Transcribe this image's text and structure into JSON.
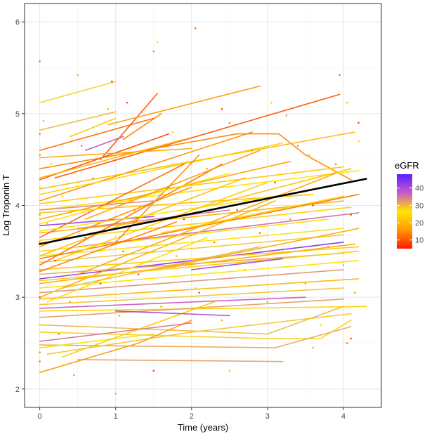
{
  "chart_data": {
    "type": "line",
    "title": "",
    "xlabel": "Time (years)",
    "ylabel": "Log Troponin T",
    "xlim": [
      -0.2,
      4.5
    ],
    "ylim": [
      1.8,
      6.2
    ],
    "x_ticks": [
      0,
      1,
      2,
      3,
      4
    ],
    "y_ticks": [
      2,
      3,
      4,
      5,
      6
    ],
    "x_tick_labels": [
      "0",
      "1",
      "2",
      "3",
      "4"
    ],
    "y_tick_labels": [
      "2",
      "3",
      "4",
      "5",
      "6"
    ],
    "grid": true,
    "legend": {
      "title": "eGFR",
      "position": "right",
      "type": "colorbar",
      "range": [
        5,
        48
      ],
      "ticks": [
        10,
        20,
        30,
        40
      ],
      "tick_labels": [
        "10",
        "20",
        "30",
        "40"
      ],
      "colors": [
        "#ff1a00",
        "#ff9900",
        "#ffe600",
        "#c85ac8",
        "#5a1fff"
      ]
    },
    "mean_trend": {
      "color": "#000000",
      "points": [
        [
          0,
          3.58
        ],
        [
          4.3,
          4.29
        ]
      ]
    },
    "subjects": [
      {
        "egfr": 28,
        "points": [
          [
            0,
            5.12
          ],
          [
            1.0,
            5.35
          ]
        ]
      },
      {
        "egfr": 30,
        "points": [
          [
            0,
            4.82
          ],
          [
            1.0,
            5.02
          ]
        ]
      },
      {
        "egfr": 22,
        "points": [
          [
            0.4,
            4.75
          ],
          [
            1.0,
            4.95
          ]
        ]
      },
      {
        "egfr": 38,
        "points": [
          [
            0.6,
            4.6
          ],
          [
            1.1,
            4.75
          ]
        ]
      },
      {
        "egfr": 10,
        "points": [
          [
            0.8,
            4.5
          ],
          [
            1.55,
            5.22
          ]
        ]
      },
      {
        "egfr": 16,
        "points": [
          [
            0.9,
            4.88
          ],
          [
            2.9,
            5.3
          ]
        ]
      },
      {
        "egfr": 14,
        "points": [
          [
            1.1,
            4.72
          ],
          [
            1.6,
            5.0
          ]
        ]
      },
      {
        "egfr": 12,
        "points": [
          [
            0,
            4.6
          ],
          [
            1.5,
            4.95
          ]
        ]
      },
      {
        "egfr": 9,
        "points": [
          [
            0,
            4.28
          ],
          [
            1.7,
            4.78
          ]
        ]
      },
      {
        "egfr": 15,
        "points": [
          [
            0,
            4.05
          ],
          [
            2.8,
            4.8
          ]
        ]
      },
      {
        "egfr": 10,
        "points": [
          [
            0.2,
            4.3
          ],
          [
            3.95,
            5.21
          ]
        ]
      },
      {
        "egfr": 14,
        "points": [
          [
            0,
            4.4
          ],
          [
            2.6,
            4.78
          ],
          [
            3.15,
            4.78
          ],
          [
            3.5,
            4.55
          ],
          [
            4.1,
            4.28
          ]
        ]
      },
      {
        "egfr": 20,
        "points": [
          [
            0,
            4.18
          ],
          [
            4.15,
            4.8
          ]
        ]
      },
      {
        "egfr": 18,
        "points": [
          [
            0,
            4.52
          ],
          [
            2.0,
            4.62
          ]
        ]
      },
      {
        "egfr": 24,
        "points": [
          [
            0,
            4.12
          ],
          [
            3.2,
            4.68
          ]
        ]
      },
      {
        "egfr": 26,
        "points": [
          [
            0,
            3.95
          ],
          [
            4.2,
            4.38
          ]
        ]
      },
      {
        "egfr": 22,
        "points": [
          [
            0,
            4.02
          ],
          [
            4.0,
            4.42
          ]
        ]
      },
      {
        "egfr": 17,
        "points": [
          [
            0,
            3.85
          ],
          [
            3.3,
            4.48
          ]
        ]
      },
      {
        "egfr": 21,
        "points": [
          [
            0,
            3.92
          ],
          [
            3.6,
            4.12
          ]
        ]
      },
      {
        "egfr": 35,
        "points": [
          [
            0.5,
            3.75
          ],
          [
            2.5,
            3.95
          ]
        ]
      },
      {
        "egfr": 42,
        "points": [
          [
            0,
            3.78
          ],
          [
            1.5,
            3.88
          ]
        ]
      },
      {
        "egfr": 36,
        "points": [
          [
            0.5,
            3.55
          ],
          [
            4.2,
            3.92
          ]
        ]
      },
      {
        "egfr": 19,
        "points": [
          [
            0,
            3.7
          ],
          [
            4.0,
            4.05
          ]
        ]
      },
      {
        "egfr": 23,
        "points": [
          [
            0,
            3.62
          ],
          [
            4.1,
            3.98
          ]
        ]
      },
      {
        "egfr": 25,
        "points": [
          [
            0,
            3.5
          ],
          [
            3.8,
            3.85
          ]
        ]
      },
      {
        "egfr": 27,
        "points": [
          [
            0,
            3.45
          ],
          [
            4.0,
            3.75
          ]
        ]
      },
      {
        "egfr": 13,
        "points": [
          [
            0,
            3.42
          ],
          [
            4.2,
            4.12
          ]
        ]
      },
      {
        "egfr": 29,
        "points": [
          [
            0,
            3.38
          ],
          [
            4.0,
            3.68
          ]
        ]
      },
      {
        "egfr": 44,
        "points": [
          [
            0,
            3.2
          ],
          [
            4.0,
            3.6
          ]
        ]
      },
      {
        "egfr": 22,
        "points": [
          [
            0,
            3.3
          ],
          [
            4.2,
            3.55
          ]
        ]
      },
      {
        "egfr": 31,
        "points": [
          [
            0,
            3.25
          ],
          [
            4.0,
            3.48
          ]
        ]
      },
      {
        "egfr": 18,
        "points": [
          [
            0,
            3.15
          ],
          [
            4.15,
            3.58
          ]
        ]
      },
      {
        "egfr": 26,
        "points": [
          [
            0,
            3.1
          ],
          [
            4.2,
            3.4
          ]
        ]
      },
      {
        "egfr": 33,
        "points": [
          [
            0,
            3.05
          ],
          [
            4.0,
            3.3
          ]
        ]
      },
      {
        "egfr": 20,
        "points": [
          [
            0,
            2.98
          ],
          [
            4.2,
            3.2
          ]
        ]
      },
      {
        "egfr": 29,
        "points": [
          [
            0,
            2.92
          ],
          [
            4.0,
            3.1
          ]
        ]
      },
      {
        "egfr": 37,
        "points": [
          [
            0,
            2.88
          ],
          [
            3.5,
            3.0
          ]
        ]
      },
      {
        "egfr": 24,
        "points": [
          [
            0,
            2.85
          ],
          [
            4.3,
            2.9
          ]
        ]
      },
      {
        "egfr": 32,
        "points": [
          [
            0,
            2.78
          ],
          [
            4.0,
            2.98
          ]
        ]
      },
      {
        "egfr": 30,
        "points": [
          [
            0,
            2.7
          ],
          [
            3.0,
            2.6
          ],
          [
            4.0,
            2.9
          ]
        ]
      },
      {
        "egfr": 28,
        "points": [
          [
            0,
            2.62
          ],
          [
            3.0,
            2.55
          ],
          [
            3.7,
            2.55
          ],
          [
            4.1,
            2.75
          ]
        ]
      },
      {
        "egfr": 31,
        "points": [
          [
            0,
            2.48
          ],
          [
            3.1,
            2.45
          ],
          [
            4.1,
            2.68
          ]
        ]
      },
      {
        "egfr": 29,
        "points": [
          [
            0.1,
            2.38
          ],
          [
            2.0,
            2.62
          ],
          [
            4.1,
            2.82
          ]
        ]
      },
      {
        "egfr": 32,
        "points": [
          [
            0.5,
            2.32
          ],
          [
            3.2,
            2.3
          ]
        ]
      },
      {
        "egfr": 27,
        "points": [
          [
            0,
            2.45
          ],
          [
            1.5,
            2.6
          ]
        ]
      },
      {
        "egfr": 22,
        "points": [
          [
            0.3,
            2.35
          ],
          [
            2.3,
            2.95
          ]
        ]
      },
      {
        "egfr": 16,
        "points": [
          [
            0,
            2.18
          ],
          [
            1.3,
            2.5
          ],
          [
            2.0,
            2.75
          ]
        ]
      },
      {
        "egfr": 35,
        "points": [
          [
            0,
            2.52
          ],
          [
            2.0,
            2.72
          ]
        ]
      },
      {
        "egfr": 40,
        "points": [
          [
            1.0,
            2.85
          ],
          [
            2.5,
            2.8
          ]
        ]
      },
      {
        "egfr": 21,
        "points": [
          [
            0,
            3.45
          ],
          [
            2.7,
            4.3
          ]
        ]
      },
      {
        "egfr": 11,
        "points": [
          [
            0,
            3.65
          ],
          [
            1.9,
            4.45
          ]
        ]
      },
      {
        "egfr": 12,
        "points": [
          [
            0,
            3.35
          ],
          [
            2.4,
            4.45
          ]
        ]
      },
      {
        "egfr": 15,
        "points": [
          [
            0,
            3.55
          ],
          [
            2.0,
            4.2
          ]
        ]
      },
      {
        "egfr": 23,
        "points": [
          [
            0.2,
            3.4
          ],
          [
            3.0,
            4.25
          ]
        ]
      },
      {
        "egfr": 19,
        "points": [
          [
            0,
            3.0
          ],
          [
            3.1,
            4.05
          ]
        ]
      },
      {
        "egfr": 17,
        "points": [
          [
            0.5,
            3.25
          ],
          [
            3.9,
            4.35
          ]
        ]
      },
      {
        "egfr": 25,
        "points": [
          [
            0.1,
            2.95
          ],
          [
            2.2,
            3.65
          ]
        ]
      },
      {
        "egfr": 14,
        "points": [
          [
            1.0,
            3.6
          ],
          [
            2.1,
            4.55
          ]
        ]
      },
      {
        "egfr": 20,
        "points": [
          [
            0,
            4.3
          ],
          [
            1.9,
            4.72
          ]
        ]
      },
      {
        "egfr": 26,
        "points": [
          [
            0,
            3.8
          ],
          [
            2.5,
            4.35
          ]
        ]
      },
      {
        "egfr": 18,
        "points": [
          [
            1.5,
            3.3
          ],
          [
            4.2,
            3.75
          ]
        ]
      },
      {
        "egfr": 30,
        "points": [
          [
            0.3,
            3.1
          ],
          [
            2.9,
            3.55
          ]
        ]
      },
      {
        "egfr": 24,
        "points": [
          [
            1.6,
            3.7
          ],
          [
            4.0,
            4.1
          ]
        ]
      },
      {
        "egfr": 13,
        "points": [
          [
            0,
            3.28
          ],
          [
            1.8,
            3.82
          ]
        ]
      },
      {
        "egfr": 34,
        "points": [
          [
            0,
            3.95
          ],
          [
            1.5,
            4.05
          ]
        ]
      },
      {
        "egfr": 21,
        "points": [
          [
            2.0,
            3.95
          ],
          [
            4.1,
            4.4
          ]
        ]
      },
      {
        "egfr": 27,
        "points": [
          [
            0,
            3.72
          ],
          [
            3.5,
            4.15
          ]
        ]
      },
      {
        "egfr": 16,
        "points": [
          [
            0.6,
            3.85
          ],
          [
            2.9,
            4.6
          ]
        ]
      },
      {
        "egfr": 23,
        "points": [
          [
            0,
            3.18
          ],
          [
            4.2,
            3.5
          ]
        ]
      },
      {
        "egfr": 41,
        "points": [
          [
            2.0,
            3.3
          ],
          [
            3.2,
            3.42
          ]
        ]
      }
    ],
    "points": [
      [
        0,
        5.57
      ],
      [
        0.5,
        5.42
      ],
      [
        0.95,
        5.35
      ],
      [
        1.55,
        5.78
      ],
      [
        1.5,
        5.68
      ],
      [
        2.05,
        5.93
      ],
      [
        0.9,
        5.05
      ],
      [
        1.15,
        5.12
      ],
      [
        1.2,
        4.62
      ],
      [
        0,
        4.55
      ],
      [
        0,
        4.78
      ],
      [
        0.05,
        4.92
      ],
      [
        2.4,
        5.05
      ],
      [
        3.05,
        5.12
      ],
      [
        3.25,
        4.98
      ],
      [
        3.95,
        5.42
      ],
      [
        4.05,
        5.12
      ],
      [
        4.2,
        4.9
      ],
      [
        0,
        4.2
      ],
      [
        0,
        3.9
      ],
      [
        0,
        3.6
      ],
      [
        0,
        3.3
      ],
      [
        0,
        3.0
      ],
      [
        0,
        2.7
      ],
      [
        0,
        2.4
      ],
      [
        0,
        2.3
      ],
      [
        0.1,
        3.8
      ],
      [
        0.2,
        3.4
      ],
      [
        0.3,
        4.1
      ],
      [
        0.4,
        2.95
      ],
      [
        0.6,
        3.65
      ],
      [
        0.7,
        4.3
      ],
      [
        0.8,
        3.15
      ],
      [
        0.9,
        3.95
      ],
      [
        1.05,
        2.8
      ],
      [
        1.1,
        3.5
      ],
      [
        1.2,
        4.05
      ],
      [
        1.3,
        3.25
      ],
      [
        1.4,
        3.75
      ],
      [
        1.6,
        2.9
      ],
      [
        1.7,
        4.2
      ],
      [
        1.8,
        3.45
      ],
      [
        1.9,
        3.85
      ],
      [
        2.05,
        3.1
      ],
      [
        2.2,
        4.4
      ],
      [
        2.3,
        3.6
      ],
      [
        2.4,
        2.75
      ],
      [
        2.6,
        3.95
      ],
      [
        2.7,
        3.3
      ],
      [
        2.8,
        4.6
      ],
      [
        2.9,
        3.7
      ],
      [
        3.0,
        2.95
      ],
      [
        3.1,
        4.25
      ],
      [
        3.2,
        3.5
      ],
      [
        3.3,
        3.85
      ],
      [
        3.4,
        4.65
      ],
      [
        3.5,
        3.15
      ],
      [
        3.6,
        4.0
      ],
      [
        3.7,
        2.7
      ],
      [
        3.8,
        3.55
      ],
      [
        3.9,
        4.45
      ],
      [
        4.0,
        3.35
      ],
      [
        4.1,
        3.9
      ],
      [
        4.2,
        4.7
      ],
      [
        4.15,
        3.05
      ],
      [
        4.05,
        2.5
      ],
      [
        1.0,
        1.95
      ],
      [
        1.5,
        2.2
      ],
      [
        2.5,
        2.2
      ],
      [
        0.45,
        2.15
      ],
      [
        0.25,
        2.6
      ],
      [
        3.6,
        2.45
      ],
      [
        4.1,
        2.55
      ],
      [
        1.75,
        4.8
      ],
      [
        2.5,
        4.9
      ],
      [
        0.55,
        4.65
      ],
      [
        3.55,
        4.55
      ],
      [
        2.1,
        3.05
      ],
      [
        0.15,
        4.45
      ],
      [
        1.25,
        3.95
      ]
    ]
  }
}
